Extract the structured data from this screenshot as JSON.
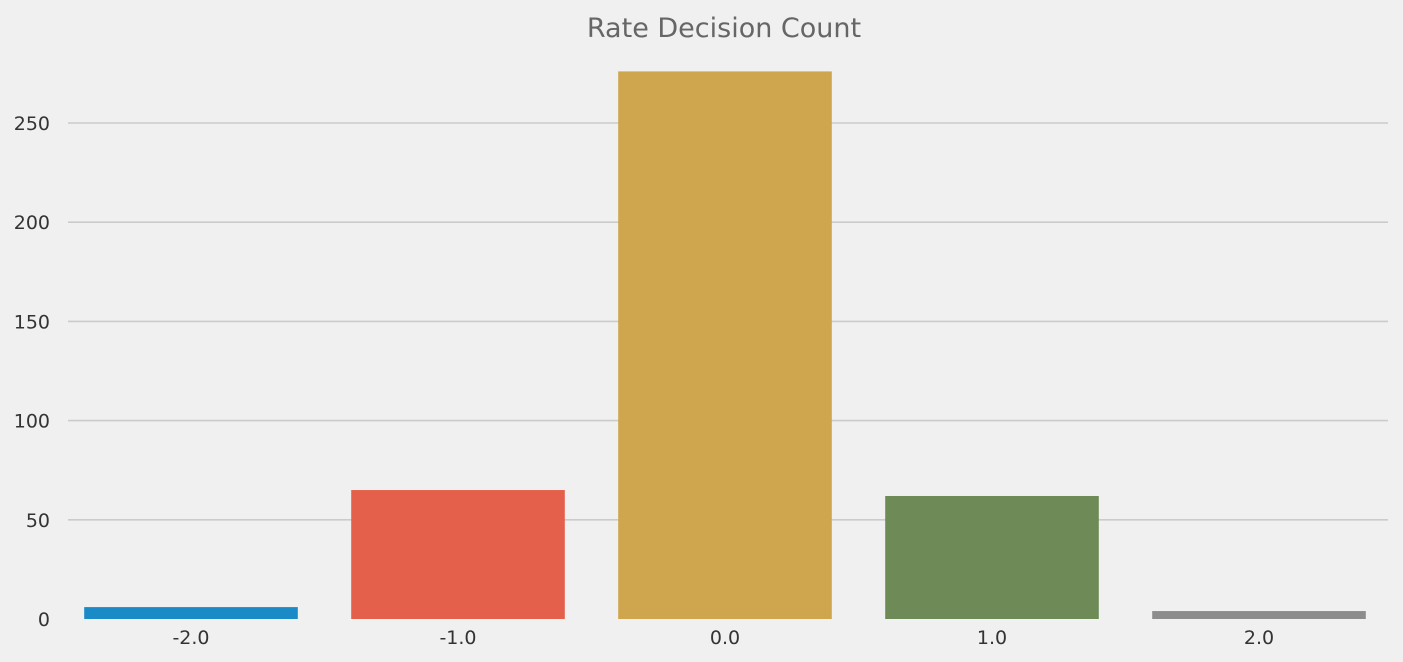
{
  "chart_data": {
    "type": "bar",
    "title": "Rate Decision Count",
    "xlabel": "",
    "ylabel": "",
    "categories": [
      "-2.0",
      "-1.0",
      "0.0",
      "1.0",
      "2.0"
    ],
    "values": [
      6,
      65,
      276,
      62,
      4
    ],
    "colors": [
      "#1a8bc7",
      "#e5604a",
      "#cfa54d",
      "#6e8a57",
      "#8c8c8c"
    ],
    "ylim": [
      0,
      290
    ],
    "yticks": [
      0,
      50,
      100,
      150,
      200,
      250
    ],
    "grid": true,
    "background": "#f0f0f0"
  }
}
